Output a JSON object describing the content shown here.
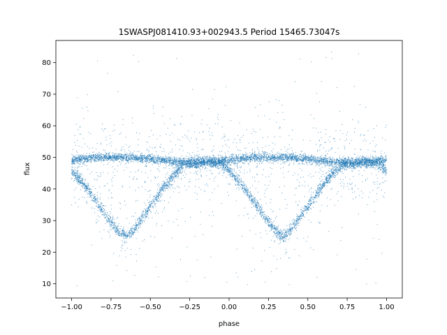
{
  "chart_data": {
    "type": "scatter",
    "title": "1SWASPJ081410.93+002943.5 Period 15465.73047s",
    "xlabel": "phase",
    "ylabel": "flux",
    "xlim": [
      -1.1,
      1.1
    ],
    "ylim": [
      5.5,
      87
    ],
    "x_ticks": [
      -1.0,
      -0.75,
      -0.5,
      -0.25,
      0.0,
      0.25,
      0.5,
      0.75,
      1.0
    ],
    "x_tick_labels": [
      "−1.00",
      "−0.75",
      "−0.50",
      "−0.25",
      "0.00",
      "0.25",
      "0.50",
      "0.75",
      "1.00"
    ],
    "y_ticks": [
      10,
      20,
      30,
      40,
      50,
      60,
      70,
      80
    ],
    "y_tick_labels": [
      "10",
      "20",
      "30",
      "40",
      "50",
      "60",
      "70",
      "80"
    ],
    "grid": false,
    "marker_color": "#1f77b4",
    "series": [
      {
        "phase": [
          -1.0,
          -0.95,
          -0.9,
          -0.85,
          -0.8,
          -0.75,
          -0.7,
          -0.65,
          -0.6,
          -0.55,
          -0.5,
          -0.45,
          -0.4,
          -0.35,
          -0.3,
          -0.25,
          -0.2,
          -0.15,
          -0.1,
          -0.05,
          0.0,
          0.05,
          0.1,
          0.15,
          0.2,
          0.25,
          0.3,
          0.35,
          0.4,
          0.45,
          0.5,
          0.55,
          0.6,
          0.65,
          0.7,
          0.75,
          0.8,
          0.85,
          0.9,
          0.95,
          1.0
        ],
        "flux_lower_branch": [
          45.5,
          43,
          40,
          36.5,
          33,
          29.5,
          26.5,
          25,
          27.5,
          31,
          34.5,
          38,
          41.5,
          44.5,
          47,
          48.5,
          48.5,
          48.5,
          48.5,
          48,
          46,
          43,
          40,
          36.5,
          33,
          29.5,
          26.5,
          25,
          27.5,
          31,
          34.5,
          38,
          41.5,
          44.5,
          47,
          48.5,
          48.5,
          48.5,
          48.5,
          48,
          46
        ],
        "flux_upper_branch": [
          49,
          49.5,
          49.5,
          50,
          50,
          50,
          50,
          50,
          50,
          49.5,
          49.5,
          49,
          49,
          48.5,
          48.5,
          48,
          48,
          48.5,
          48.5,
          49,
          49,
          49.5,
          49.5,
          50,
          50,
          50,
          50,
          50,
          50,
          49.5,
          49.5,
          49,
          49,
          48.5,
          48.5,
          48,
          48,
          48.5,
          48.5,
          49,
          49
        ]
      }
    ]
  }
}
